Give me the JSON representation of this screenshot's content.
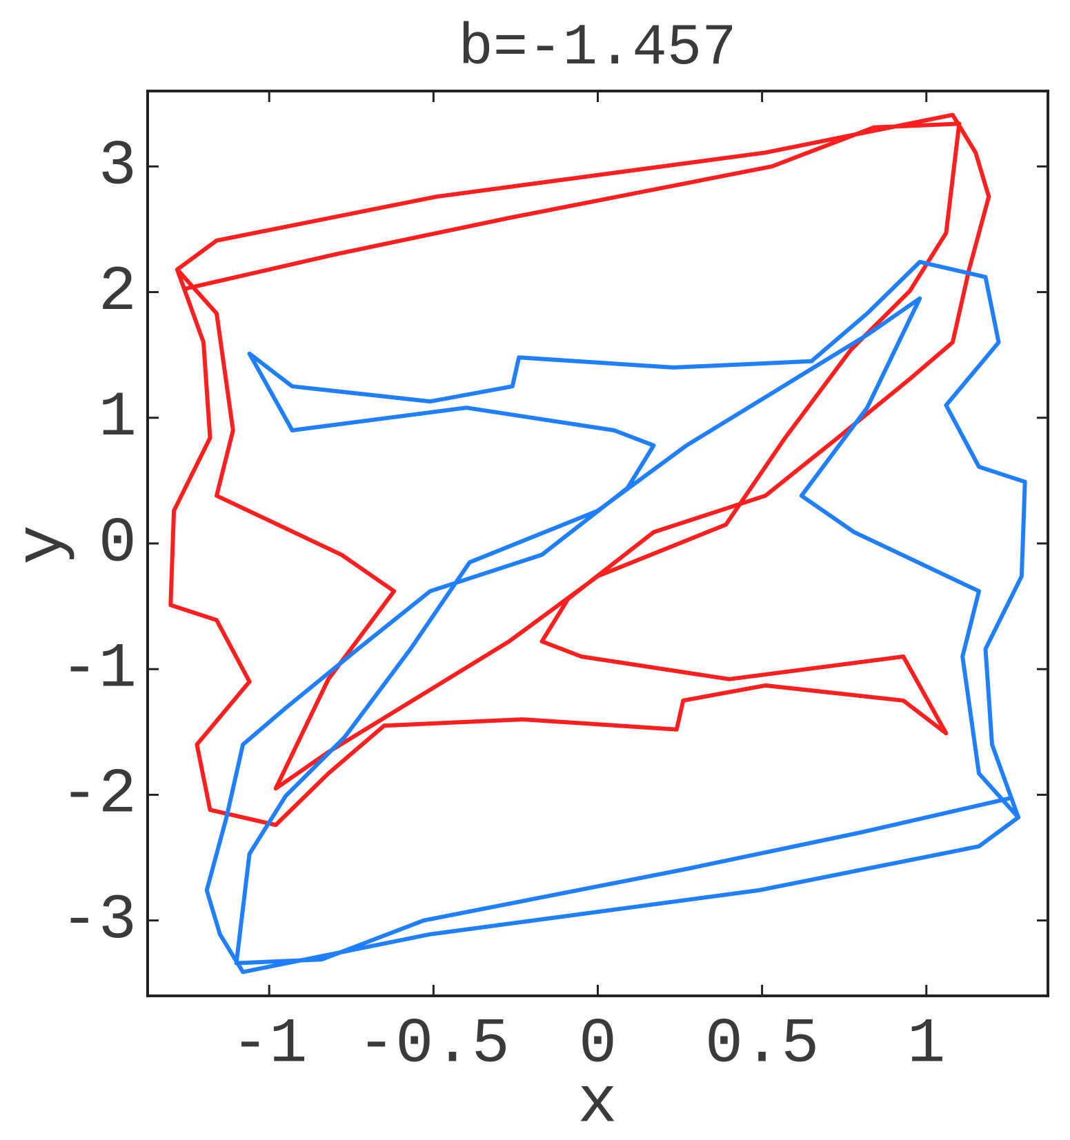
{
  "chart_data": {
    "type": "line",
    "title": "b=-1.457",
    "x_label": "x",
    "y_label": "y",
    "xlim": [
      -1.37,
      1.37
    ],
    "ylim": [
      -3.6,
      3.6
    ],
    "xticks": [
      -1,
      -0.5,
      0,
      0.5,
      1
    ],
    "yticks": [
      -3,
      -2,
      -1,
      0,
      1,
      2,
      3
    ],
    "series": [
      {
        "color": "#ff1f1f",
        "x": [
          -1.28,
          -1.16,
          -0.49,
          0.51,
          1.08,
          1.15,
          1.19,
          1.13,
          1.08,
          0.95,
          0.73,
          0.51,
          0.17,
          -0.09,
          -0.17,
          -0.05,
          0.4,
          0.93,
          1.06,
          0.93,
          0.51,
          0.26,
          0.24,
          -0.23,
          -0.65,
          -0.82,
          -0.98,
          -1.18,
          -1.22,
          -1.06,
          -1.16,
          -1.3,
          -1.29,
          -1.18,
          -1.2,
          -1.28,
          -1.16,
          -1.11,
          -1.16,
          -0.78,
          -0.62,
          -0.82,
          -0.98,
          -0.82,
          -0.27,
          0,
          0.39,
          0.57,
          0.77,
          0.95,
          1.06,
          1.1,
          0.84,
          0.53,
          -0.27,
          -0.8,
          -1.25
        ],
        "values": [
          2.18,
          2.41,
          2.76,
          3.11,
          3.41,
          3.11,
          2.76,
          2.18,
          1.6,
          1.31,
          0.84,
          0.38,
          0.09,
          -0.44,
          -0.78,
          -0.9,
          -1.08,
          -0.9,
          -1.51,
          -1.25,
          -1.13,
          -1.25,
          -1.48,
          -1.4,
          -1.45,
          -1.83,
          -2.24,
          -2.12,
          -1.6,
          -1.1,
          -0.61,
          -0.49,
          0.26,
          0.84,
          1.6,
          2.18,
          1.83,
          0.9,
          0.38,
          -0.09,
          -0.38,
          -1.08,
          -1.95,
          -1.66,
          -0.78,
          -0.26,
          0.15,
          0.84,
          1.54,
          2.01,
          2.47,
          3.34,
          3.31,
          3.0,
          2.59,
          2.3,
          2.03
        ]
      },
      {
        "color": "#1f7fff",
        "x": [
          1.28,
          1.16,
          0.49,
          -0.51,
          -1.08,
          -1.15,
          -1.19,
          -1.13,
          -1.08,
          -0.95,
          -0.73,
          -0.51,
          -0.17,
          0.09,
          0.17,
          0.05,
          -0.4,
          -0.93,
          -1.06,
          -0.93,
          -0.51,
          -0.26,
          -0.24,
          0.23,
          0.65,
          0.82,
          0.98,
          1.18,
          1.22,
          1.06,
          1.16,
          1.3,
          1.29,
          1.18,
          1.2,
          1.28,
          1.16,
          1.11,
          1.16,
          0.78,
          0.62,
          0.82,
          0.98,
          0.82,
          0.27,
          0,
          -0.39,
          -0.57,
          -0.77,
          -0.95,
          -1.06,
          -1.1,
          -0.84,
          -0.53,
          0.27,
          0.8,
          1.25
        ],
        "values": [
          -2.18,
          -2.41,
          -2.76,
          -3.11,
          -3.41,
          -3.11,
          -2.76,
          -2.18,
          -1.6,
          -1.31,
          -0.84,
          -0.38,
          -0.09,
          0.44,
          0.78,
          0.9,
          1.08,
          0.9,
          1.51,
          1.25,
          1.13,
          1.25,
          1.48,
          1.4,
          1.45,
          1.83,
          2.24,
          2.12,
          1.6,
          1.1,
          0.61,
          0.49,
          -0.26,
          -0.84,
          -1.6,
          -2.18,
          -1.83,
          -0.9,
          -0.38,
          0.09,
          0.38,
          1.08,
          1.95,
          1.66,
          0.78,
          0.26,
          -0.15,
          -0.84,
          -1.54,
          -2.01,
          -2.47,
          -3.34,
          -3.31,
          -3.0,
          -2.59,
          -2.3,
          -2.03
        ]
      }
    ]
  }
}
